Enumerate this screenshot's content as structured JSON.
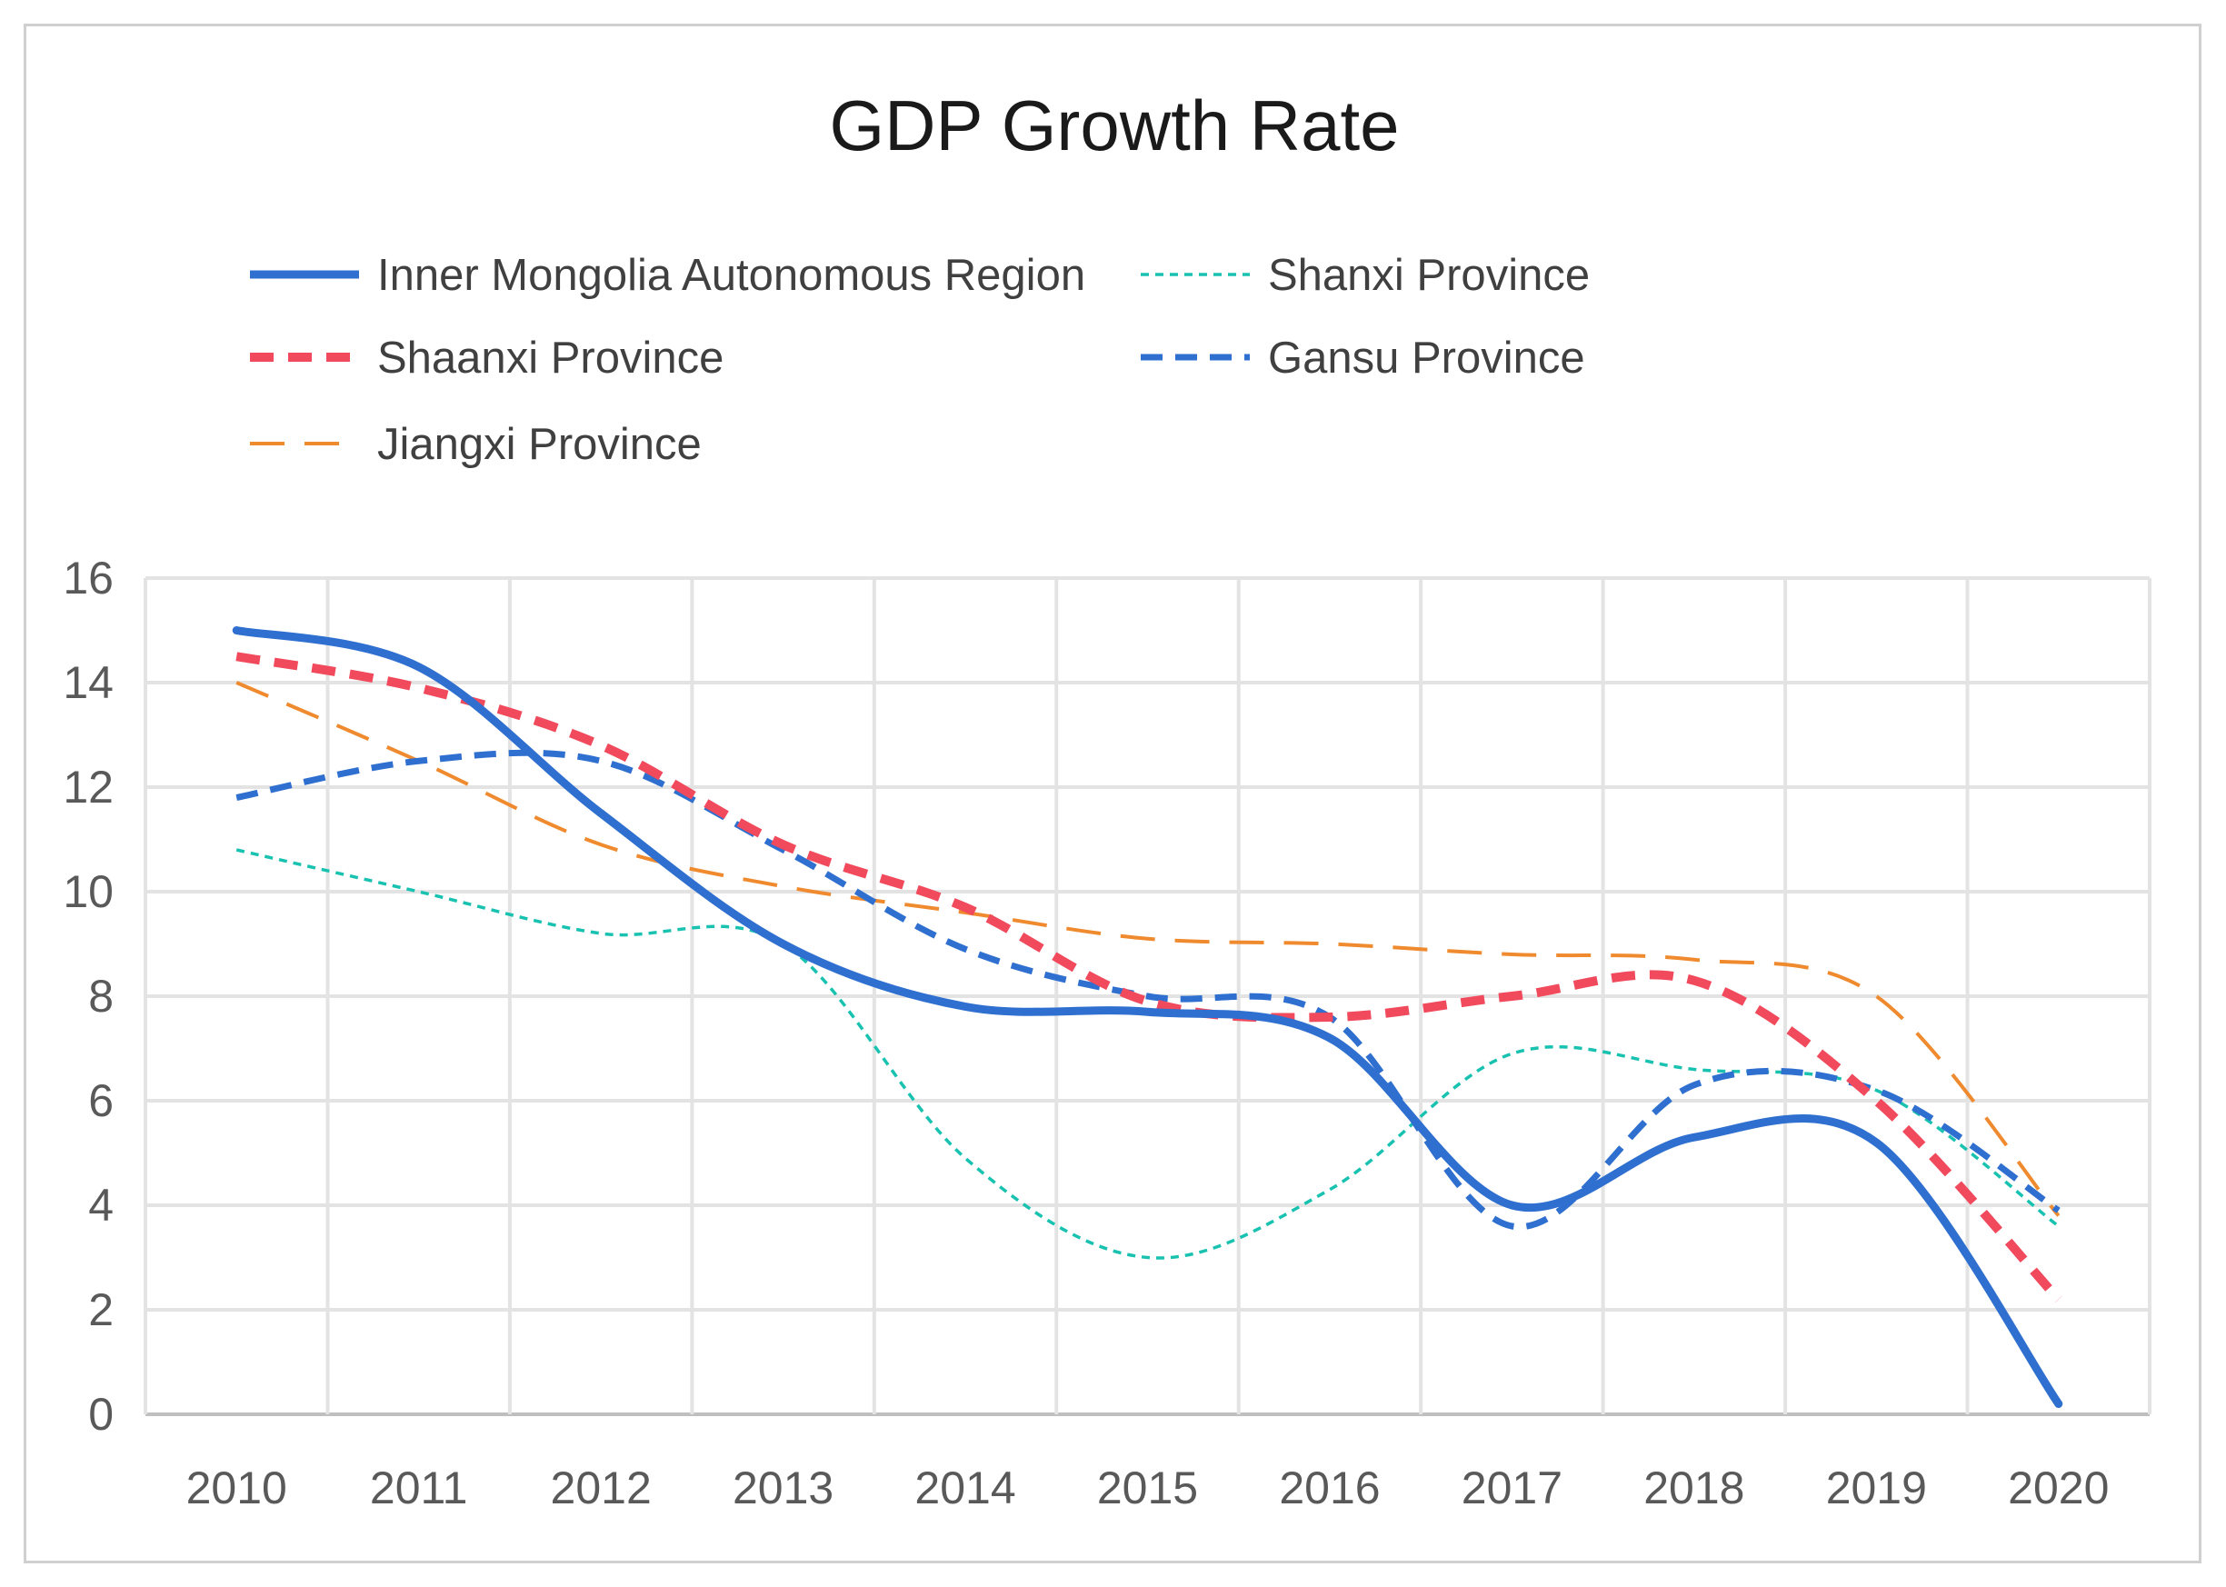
{
  "chart_data": {
    "type": "line",
    "title": "GDP Growth Rate",
    "xlabel": "",
    "ylabel": "",
    "categories": [
      "2010",
      "2011",
      "2012",
      "2013",
      "2014",
      "2015",
      "2016",
      "2017",
      "2018",
      "2019",
      "2020"
    ],
    "y_ticks": [
      "0",
      "2",
      "4",
      "6",
      "8",
      "10",
      "12",
      "14",
      "16"
    ],
    "ylim": [
      0,
      16
    ],
    "grid": true,
    "legend_position": "top",
    "series": [
      {
        "name": "Inner Mongolia Autonomous Region",
        "color": "#2e6fd0",
        "style": "solid",
        "values": [
          15.0,
          14.3,
          11.5,
          9.0,
          7.8,
          7.7,
          7.2,
          4.0,
          5.3,
          5.2,
          0.2
        ]
      },
      {
        "name": "Shanxi Province",
        "color": "#19c2b0",
        "style": "dotted",
        "values": [
          10.8,
          10.0,
          9.2,
          9.0,
          4.9,
          3.0,
          4.3,
          6.9,
          6.6,
          6.2,
          3.6
        ]
      },
      {
        "name": "Shaanxi Province",
        "color": "#f04a5c",
        "style": "dashed-thick",
        "values": [
          14.5,
          13.9,
          12.8,
          10.9,
          9.7,
          7.9,
          7.6,
          8.0,
          8.3,
          6.0,
          2.2
        ]
      },
      {
        "name": "Gansu Province",
        "color": "#2e6fd0",
        "style": "dashed",
        "values": [
          11.8,
          12.5,
          12.5,
          10.8,
          8.9,
          8.0,
          7.6,
          3.6,
          6.3,
          6.2,
          3.9
        ]
      },
      {
        "name": "Jiangxi Province",
        "color": "#f08a2e",
        "style": "long-dash",
        "values": [
          14.0,
          12.5,
          10.9,
          10.1,
          9.6,
          9.1,
          9.0,
          8.8,
          8.7,
          8.0,
          3.8
        ]
      }
    ]
  }
}
